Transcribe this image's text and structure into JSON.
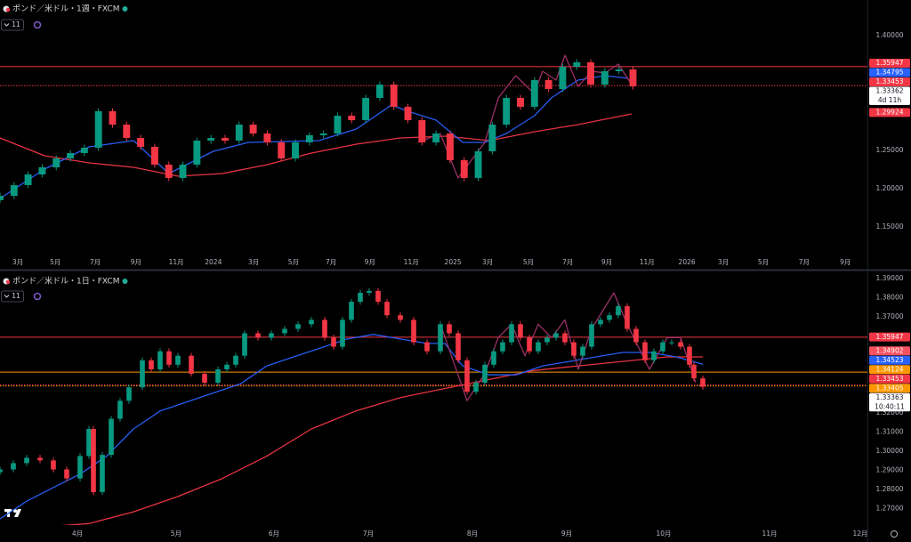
{
  "chart_data": [
    {
      "type": "candlestick",
      "title": "ポンド／米ドル・1週・FXCM",
      "indicator_count": "11",
      "up_color": "#089981",
      "down_color": "#f23645",
      "grid": false,
      "xlim": [
        0,
        185
      ],
      "ylim": [
        1.1128,
        1.4407
      ],
      "xticks": [
        {
          "value": 3.8,
          "label": "3月"
        },
        {
          "value": 11.8,
          "label": "5月"
        },
        {
          "value": 20.3,
          "label": "7月"
        },
        {
          "value": 29,
          "label": "9月"
        },
        {
          "value": 37.6,
          "label": "11月"
        },
        {
          "value": 45.5,
          "label": "2024"
        },
        {
          "value": 54.1,
          "label": "3月"
        },
        {
          "value": 62.6,
          "label": "5月"
        },
        {
          "value": 70.6,
          "label": "7月"
        },
        {
          "value": 78.9,
          "label": "9月"
        },
        {
          "value": 87.7,
          "label": "11月"
        },
        {
          "value": 96.6,
          "label": "2025"
        },
        {
          "value": 104,
          "label": "3月"
        },
        {
          "value": 112.7,
          "label": "5月"
        },
        {
          "value": 121.1,
          "label": "7月"
        },
        {
          "value": 129.4,
          "label": "9月"
        },
        {
          "value": 138,
          "label": "11月"
        },
        {
          "value": 146.5,
          "label": "2026"
        },
        {
          "value": 154.3,
          "label": "3月"
        },
        {
          "value": 162.8,
          "label": "5月"
        },
        {
          "value": 171.5,
          "label": "7月"
        },
        {
          "value": 180.3,
          "label": "9月"
        }
      ],
      "yticks": [
        {
          "value": 1.4,
          "label": "1.40000"
        },
        {
          "value": 1.25,
          "label": "1.25000"
        },
        {
          "value": 1.2,
          "label": "1.20000"
        },
        {
          "value": 1.15,
          "label": "1.15000"
        }
      ],
      "x": [
        0,
        3,
        6,
        9,
        12,
        15,
        18,
        21,
        24,
        27,
        30,
        33,
        36,
        39,
        42,
        45,
        48,
        51,
        54,
        57,
        60,
        63,
        66,
        69,
        72,
        75,
        78,
        81,
        84,
        87,
        90,
        93,
        96,
        99,
        102,
        105,
        108,
        111,
        114,
        117,
        120,
        123,
        126,
        129,
        132,
        135
      ],
      "open": [
        1.185,
        1.1907,
        1.2047,
        1.2186,
        1.2279,
        1.2395,
        1.2465,
        1.2535,
        1.3012,
        1.2837,
        1.2663,
        1.2547,
        1.2314,
        1.214,
        1.2314,
        1.2628,
        1.2663,
        1.2628,
        1.2837,
        1.2721,
        1.2605,
        1.2395,
        1.2605,
        1.2698,
        1.2721,
        1.2953,
        1.2895,
        1.3186,
        1.336,
        1.307,
        1.2895,
        1.2605,
        1.2721,
        1.2372,
        1.214,
        1.2488,
        1.2837,
        1.3186,
        1.307,
        1.3419,
        1.3302,
        1.3593,
        1.3651,
        1.336,
        1.3535,
        1.3558
      ],
      "high": [
        1.1947,
        1.2087,
        1.2226,
        1.2319,
        1.2435,
        1.2505,
        1.2575,
        1.3052,
        1.3052,
        1.2877,
        1.2703,
        1.2587,
        1.2354,
        1.2354,
        1.2668,
        1.2703,
        1.2703,
        1.2877,
        1.2877,
        1.2761,
        1.2645,
        1.2645,
        1.2738,
        1.2761,
        1.2993,
        1.2993,
        1.3226,
        1.34,
        1.34,
        1.311,
        1.2935,
        1.2761,
        1.2761,
        1.2412,
        1.2528,
        1.2877,
        1.3226,
        1.3226,
        1.3459,
        1.3459,
        1.3633,
        1.3691,
        1.3691,
        1.3575,
        1.3598,
        1.3598
      ],
      "low": [
        1.181,
        1.1867,
        1.2007,
        1.2146,
        1.2239,
        1.2355,
        1.2425,
        1.2495,
        1.2797,
        1.2623,
        1.2507,
        1.2274,
        1.21,
        1.21,
        1.2274,
        1.2588,
        1.2588,
        1.2588,
        1.2681,
        1.2565,
        1.2355,
        1.2355,
        1.2565,
        1.2658,
        1.2681,
        1.2855,
        1.2855,
        1.3146,
        1.303,
        1.2855,
        1.2565,
        1.2565,
        1.2332,
        1.21,
        1.21,
        1.2448,
        1.2797,
        1.303,
        1.303,
        1.3262,
        1.3262,
        1.3553,
        1.332,
        1.332,
        1.3495,
        1.3296
      ],
      "close": [
        1.1907,
        1.2047,
        1.2186,
        1.2279,
        1.2395,
        1.2465,
        1.2535,
        1.3012,
        1.2837,
        1.2663,
        1.2547,
        1.2314,
        1.214,
        1.2314,
        1.2628,
        1.2663,
        1.2628,
        1.2837,
        1.2721,
        1.2605,
        1.2395,
        1.2605,
        1.2698,
        1.2721,
        1.2953,
        1.2895,
        1.3186,
        1.336,
        1.307,
        1.2895,
        1.2605,
        1.2721,
        1.2372,
        1.214,
        1.2488,
        1.2837,
        1.3186,
        1.307,
        1.3419,
        1.3302,
        1.3593,
        1.3651,
        1.336,
        1.3535,
        1.3558,
        1.3336
      ],
      "series": [
        {
          "color": "#f23645",
          "x": [
            0,
            9.5,
            19,
            28.5,
            38,
            47.4,
            57,
            66.4,
            76,
            85.4,
            95,
            104.4,
            114,
            123.3,
            134.7
          ],
          "values": [
            1.2663,
            1.243,
            1.2337,
            1.2279,
            1.2163,
            1.2198,
            1.2314,
            1.2465,
            1.2581,
            1.2663,
            1.2686,
            1.2628,
            1.2744,
            1.2837,
            1.2977
          ]
        },
        {
          "color": "#2962ff",
          "x": [
            0,
            9.5,
            19,
            28.5,
            36,
            45.5,
            53,
            68,
            76,
            83.5,
            87,
            93,
            98.7,
            103.4,
            108,
            114,
            117.6,
            123.3,
            129,
            134
          ],
          "values": [
            1.1872,
            1.2256,
            1.2547,
            1.2628,
            1.2198,
            1.2488,
            1.2605,
            1.2628,
            1.2779,
            1.3093,
            1.3012,
            1.2895,
            1.2605,
            1.2605,
            1.2721,
            1.2953,
            1.3186,
            1.3419,
            1.3477,
            1.3442
          ]
        },
        {
          "color": "#a3336b",
          "x": [
            89.2,
            93.9,
            97.7,
            103.4,
            106.3,
            110,
            113.9,
            115.7,
            118.6,
            120.5,
            123.3,
            126.2,
            129,
            131.9,
            134.7
          ],
          "values": [
            1.2605,
            1.2721,
            1.214,
            1.2605,
            1.3186,
            1.3477,
            1.3244,
            1.3535,
            1.3419,
            1.3744,
            1.3337,
            1.3535,
            1.3512,
            1.3628,
            1.336
          ]
        }
      ],
      "hlines": [
        {
          "value": 1.35947,
          "color": "#f23645",
          "dash": false
        },
        {
          "value": 1.33453,
          "color": "#f23645",
          "dash": true
        }
      ],
      "price_labels": [
        {
          "value": 1.35947,
          "label": "1.35947",
          "color": "#f23645"
        },
        {
          "value": 1.34795,
          "label": "1.34795",
          "color": "#2962ff"
        },
        {
          "value": 1.33453,
          "label": "1.33453",
          "color": "#f23645"
        },
        {
          "value": 1.33362,
          "label": "1.33362",
          "color": "#ffffff",
          "countdown": "4d 11h"
        },
        {
          "value": 1.29924,
          "label": "1.29924",
          "color": "#f23645"
        }
      ]
    },
    {
      "type": "candlestick",
      "title": "ポンド／米ドル・1日・FXCM",
      "indicator_count": "11",
      "up_color": "#089981",
      "down_color": "#f23645",
      "grid": false,
      "xlim": [
        0,
        195
      ],
      "ylim": [
        1.2615,
        1.3928
      ],
      "xticks": [
        {
          "value": 17.4,
          "label": "4月"
        },
        {
          "value": 39.6,
          "label": "5月"
        },
        {
          "value": 61.6,
          "label": "6月"
        },
        {
          "value": 82.8,
          "label": "7月"
        },
        {
          "value": 106.2,
          "label": "8月"
        },
        {
          "value": 127.4,
          "label": "9月"
        },
        {
          "value": 149.2,
          "label": "10月"
        },
        {
          "value": 173,
          "label": "11月"
        },
        {
          "value": 193.4,
          "label": "12月"
        }
      ],
      "yticks": [
        {
          "value": 1.39,
          "label": "1.39000"
        },
        {
          "value": 1.38,
          "label": "1.38000"
        },
        {
          "value": 1.37,
          "label": "1.37000"
        },
        {
          "value": 1.32,
          "label": "1.32000"
        },
        {
          "value": 1.31,
          "label": "1.31000"
        },
        {
          "value": 1.3,
          "label": "1.30000"
        },
        {
          "value": 1.29,
          "label": "1.29000"
        },
        {
          "value": 1.28,
          "label": "1.28000"
        },
        {
          "value": 1.27,
          "label": "1.27000"
        }
      ],
      "x": [
        0,
        3,
        6,
        9,
        12,
        15,
        18,
        20,
        21,
        23,
        25,
        27,
        29,
        32,
        34,
        36,
        38,
        40,
        43,
        46,
        49,
        51,
        53,
        55,
        58,
        61,
        64,
        67,
        70,
        73,
        75,
        77,
        79,
        81,
        83,
        85,
        87,
        90,
        93,
        96,
        99,
        101,
        103,
        105,
        107,
        109,
        111,
        113,
        115,
        117,
        119,
        121,
        123,
        125,
        127,
        129,
        131,
        133,
        135,
        137,
        139,
        141,
        143,
        145,
        147,
        149,
        151,
        153,
        155,
        156,
        158
      ],
      "open": [
        1.289,
        1.2905,
        1.2938,
        1.2966,
        1.2952,
        1.2905,
        1.2858,
        1.2975,
        1.3116,
        1.2787,
        1.2981,
        1.3169,
        1.3263,
        1.3333,
        1.3474,
        1.3427,
        1.3521,
        1.3451,
        1.3498,
        1.3404,
        1.3357,
        1.3427,
        1.3451,
        1.3498,
        1.3615,
        1.3592,
        1.3615,
        1.3638,
        1.3662,
        1.3685,
        1.3592,
        1.3545,
        1.3685,
        1.3779,
        1.3826,
        1.3836,
        1.3779,
        1.3709,
        1.3685,
        1.3568,
        1.3521,
        1.3662,
        1.3615,
        1.3474,
        1.331,
        1.3357,
        1.3451,
        1.3521,
        1.3568,
        1.3662,
        1.3592,
        1.3521,
        1.3568,
        1.3592,
        1.3615,
        1.3568,
        1.3498,
        1.3545,
        1.3662,
        1.3685,
        1.3709,
        1.3756,
        1.3638,
        1.3568,
        1.3474,
        1.3521,
        1.3568,
        1.3568,
        1.3545,
        1.3451,
        1.338
      ],
      "high": [
        1.292,
        1.2953,
        1.2981,
        1.2981,
        1.2967,
        1.292,
        1.299,
        1.3131,
        1.3131,
        1.2996,
        1.3184,
        1.3278,
        1.3348,
        1.3489,
        1.3489,
        1.3536,
        1.3536,
        1.3513,
        1.3513,
        1.3419,
        1.3442,
        1.3466,
        1.3513,
        1.363,
        1.363,
        1.363,
        1.3653,
        1.3677,
        1.37,
        1.37,
        1.3607,
        1.37,
        1.3794,
        1.3841,
        1.3851,
        1.3851,
        1.3794,
        1.3724,
        1.37,
        1.3583,
        1.3677,
        1.3677,
        1.363,
        1.3489,
        1.3372,
        1.3466,
        1.3536,
        1.3583,
        1.3677,
        1.3677,
        1.3607,
        1.3583,
        1.3607,
        1.363,
        1.363,
        1.3583,
        1.356,
        1.3677,
        1.37,
        1.3724,
        1.3771,
        1.3771,
        1.3653,
        1.3583,
        1.3536,
        1.3583,
        1.3583,
        1.3583,
        1.356,
        1.3466,
        1.3395
      ],
      "low": [
        1.2875,
        1.289,
        1.2923,
        1.2937,
        1.289,
        1.2843,
        1.2843,
        1.296,
        1.2772,
        1.2772,
        1.2966,
        1.3154,
        1.3248,
        1.3318,
        1.3412,
        1.3412,
        1.3436,
        1.3436,
        1.3389,
        1.3342,
        1.3342,
        1.3412,
        1.3436,
        1.3483,
        1.3577,
        1.3577,
        1.36,
        1.3623,
        1.3647,
        1.3577,
        1.353,
        1.353,
        1.367,
        1.3764,
        1.3811,
        1.3764,
        1.3694,
        1.367,
        1.3553,
        1.3506,
        1.3506,
        1.36,
        1.3459,
        1.3295,
        1.3295,
        1.3342,
        1.3436,
        1.3506,
        1.3553,
        1.3577,
        1.3506,
        1.3506,
        1.3553,
        1.3577,
        1.3553,
        1.3483,
        1.3483,
        1.353,
        1.3647,
        1.367,
        1.3694,
        1.3623,
        1.3553,
        1.3459,
        1.3459,
        1.3506,
        1.3553,
        1.353,
        1.3436,
        1.3365,
        1.3321
      ],
      "close": [
        1.2905,
        1.2938,
        1.2966,
        1.2952,
        1.2905,
        1.2858,
        1.2975,
        1.3116,
        1.2787,
        1.2981,
        1.3169,
        1.3263,
        1.3333,
        1.3474,
        1.3427,
        1.3521,
        1.3451,
        1.3498,
        1.3404,
        1.3357,
        1.3427,
        1.3451,
        1.3498,
        1.3615,
        1.3592,
        1.3615,
        1.3638,
        1.3662,
        1.3685,
        1.3592,
        1.3545,
        1.3685,
        1.3779,
        1.3826,
        1.3836,
        1.3779,
        1.3709,
        1.3685,
        1.3568,
        1.3521,
        1.3662,
        1.3615,
        1.3474,
        1.331,
        1.3357,
        1.3451,
        1.3521,
        1.3568,
        1.3662,
        1.3592,
        1.3521,
        1.3568,
        1.3592,
        1.3615,
        1.3568,
        1.3498,
        1.3545,
        1.3662,
        1.3685,
        1.3709,
        1.3756,
        1.3638,
        1.3568,
        1.3474,
        1.3521,
        1.3568,
        1.3568,
        1.3545,
        1.3451,
        1.338,
        1.3336
      ],
      "series": [
        {
          "color": "#f23645",
          "x": [
            0,
            12,
            20,
            30,
            40,
            50,
            60,
            70,
            80,
            90,
            100,
            110,
            120,
            130,
            140,
            150,
            158
          ],
          "values": [
            1.2609,
            1.2609,
            1.2623,
            1.2684,
            1.2764,
            1.2858,
            1.2975,
            1.3116,
            1.321,
            1.328,
            1.3327,
            1.3374,
            1.3421,
            1.3445,
            1.3468,
            1.3492,
            1.3492
          ]
        },
        {
          "color": "#2962ff",
          "x": [
            0,
            6,
            12,
            18,
            24,
            30,
            36,
            42,
            48,
            54,
            60,
            66,
            72,
            78,
            84,
            90,
            96,
            100,
            104,
            110,
            116,
            122,
            128,
            134,
            140,
            146,
            152,
            158
          ],
          "values": [
            1.2647,
            1.274,
            1.2811,
            1.2881,
            1.2975,
            1.3116,
            1.321,
            1.3257,
            1.3304,
            1.3351,
            1.3445,
            1.3492,
            1.3538,
            1.3585,
            1.3609,
            1.3585,
            1.3562,
            1.3562,
            1.3445,
            1.3398,
            1.3398,
            1.3445,
            1.3468,
            1.3492,
            1.3515,
            1.3515,
            1.3492,
            1.3454
          ]
        },
        {
          "color": "#a3336b",
          "x": [
            99,
            105,
            109,
            112,
            115,
            118,
            121,
            124,
            127,
            130,
            133,
            138,
            141,
            146,
            150,
            153,
            156.4
          ],
          "values": [
            1.3662,
            1.3263,
            1.3404,
            1.3592,
            1.3662,
            1.3498,
            1.3662,
            1.3592,
            1.3685,
            1.3427,
            1.3638,
            1.3826,
            1.3662,
            1.3427,
            1.3592,
            1.3592,
            1.3357
          ]
        }
      ],
      "hlines": [
        {
          "value": 1.35947,
          "color": "#f23645",
          "dash": false
        },
        {
          "value": 1.34124,
          "color": "#ff9800",
          "dash": false
        },
        {
          "value": 1.33453,
          "color": "#f23645",
          "dash": true
        },
        {
          "value": 1.33405,
          "color": "#ff9800",
          "dash": true
        }
      ],
      "price_labels": [
        {
          "value": 1.35947,
          "label": "1.35947",
          "color": "#f23645"
        },
        {
          "value": 1.34902,
          "label": "1.34902",
          "color": "#f7525f"
        },
        {
          "value": 1.34523,
          "label": "1.34523",
          "color": "#2962ff"
        },
        {
          "value": 1.34124,
          "label": "1.34124",
          "color": "#ff9800"
        },
        {
          "value": 1.33453,
          "label": "1.33453",
          "color": "#f23645"
        },
        {
          "value": 1.33405,
          "label": "1.33405",
          "color": "#ff9800"
        },
        {
          "value": 1.33363,
          "label": "1.33363",
          "color": "#ffffff",
          "countdown": "10:40:11"
        }
      ]
    }
  ]
}
